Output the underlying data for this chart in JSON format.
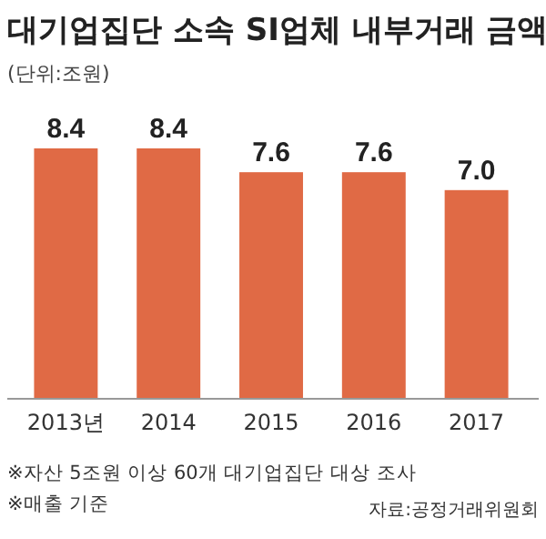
{
  "chart_data": {
    "type": "bar",
    "title": "대기업집단 소속 SI업체 내부거래 금액",
    "subtitle": "(단위:조원)",
    "categories": [
      "2013년",
      "2014",
      "2015",
      "2016",
      "2017"
    ],
    "values": [
      8.4,
      8.4,
      7.6,
      7.6,
      7.0
    ],
    "value_labels": [
      "8.4",
      "8.4",
      "7.6",
      "7.6",
      "7.0"
    ],
    "color": "#e06a45",
    "tick_labels": "x",
    "annotations": [
      "※자산 5조원 이상 60개 대기업집단 대상 조사",
      "※매출 기준",
      "자료:공정거래위원회"
    ]
  }
}
